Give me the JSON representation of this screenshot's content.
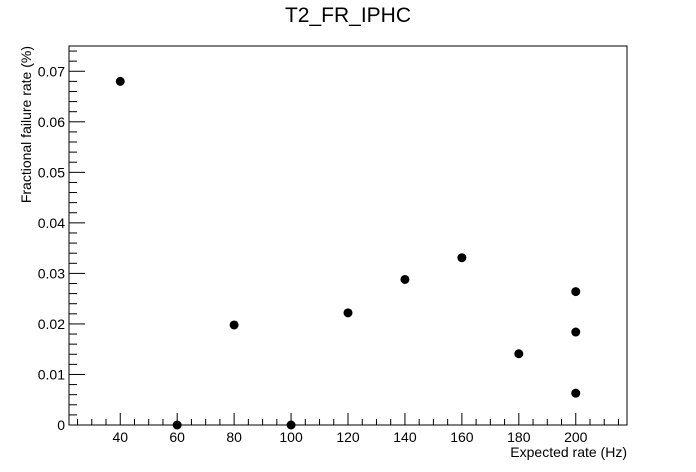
{
  "chart_data": {
    "type": "scatter",
    "title": "T2_FR_IPHC",
    "xlabel": "Expected rate (Hz)",
    "ylabel": "Fractional failure rate (%)",
    "xlim": [
      22,
      218
    ],
    "ylim": [
      0,
      0.075
    ],
    "x_ticks": [
      40,
      60,
      80,
      100,
      120,
      140,
      160,
      180,
      200
    ],
    "x_tick_labels": [
      "40",
      "60",
      "80",
      "100",
      "120",
      "140",
      "160",
      "180",
      "200"
    ],
    "y_ticks": [
      0,
      0.01,
      0.02,
      0.03,
      0.04,
      0.05,
      0.06,
      0.07
    ],
    "y_tick_labels": [
      "0",
      "0.01",
      "0.02",
      "0.03",
      "0.04",
      "0.05",
      "0.06",
      "0.07"
    ],
    "grid": false,
    "marker_color": "#000000",
    "points": [
      {
        "x": 40,
        "y": 0.068
      },
      {
        "x": 60,
        "y": 0.0
      },
      {
        "x": 80,
        "y": 0.0198
      },
      {
        "x": 100,
        "y": 0.0
      },
      {
        "x": 120,
        "y": 0.0222
      },
      {
        "x": 140,
        "y": 0.0288
      },
      {
        "x": 160,
        "y": 0.0331
      },
      {
        "x": 180,
        "y": 0.0141
      },
      {
        "x": 200,
        "y": 0.0264
      },
      {
        "x": 200,
        "y": 0.0184
      },
      {
        "x": 200,
        "y": 0.0063
      }
    ]
  }
}
